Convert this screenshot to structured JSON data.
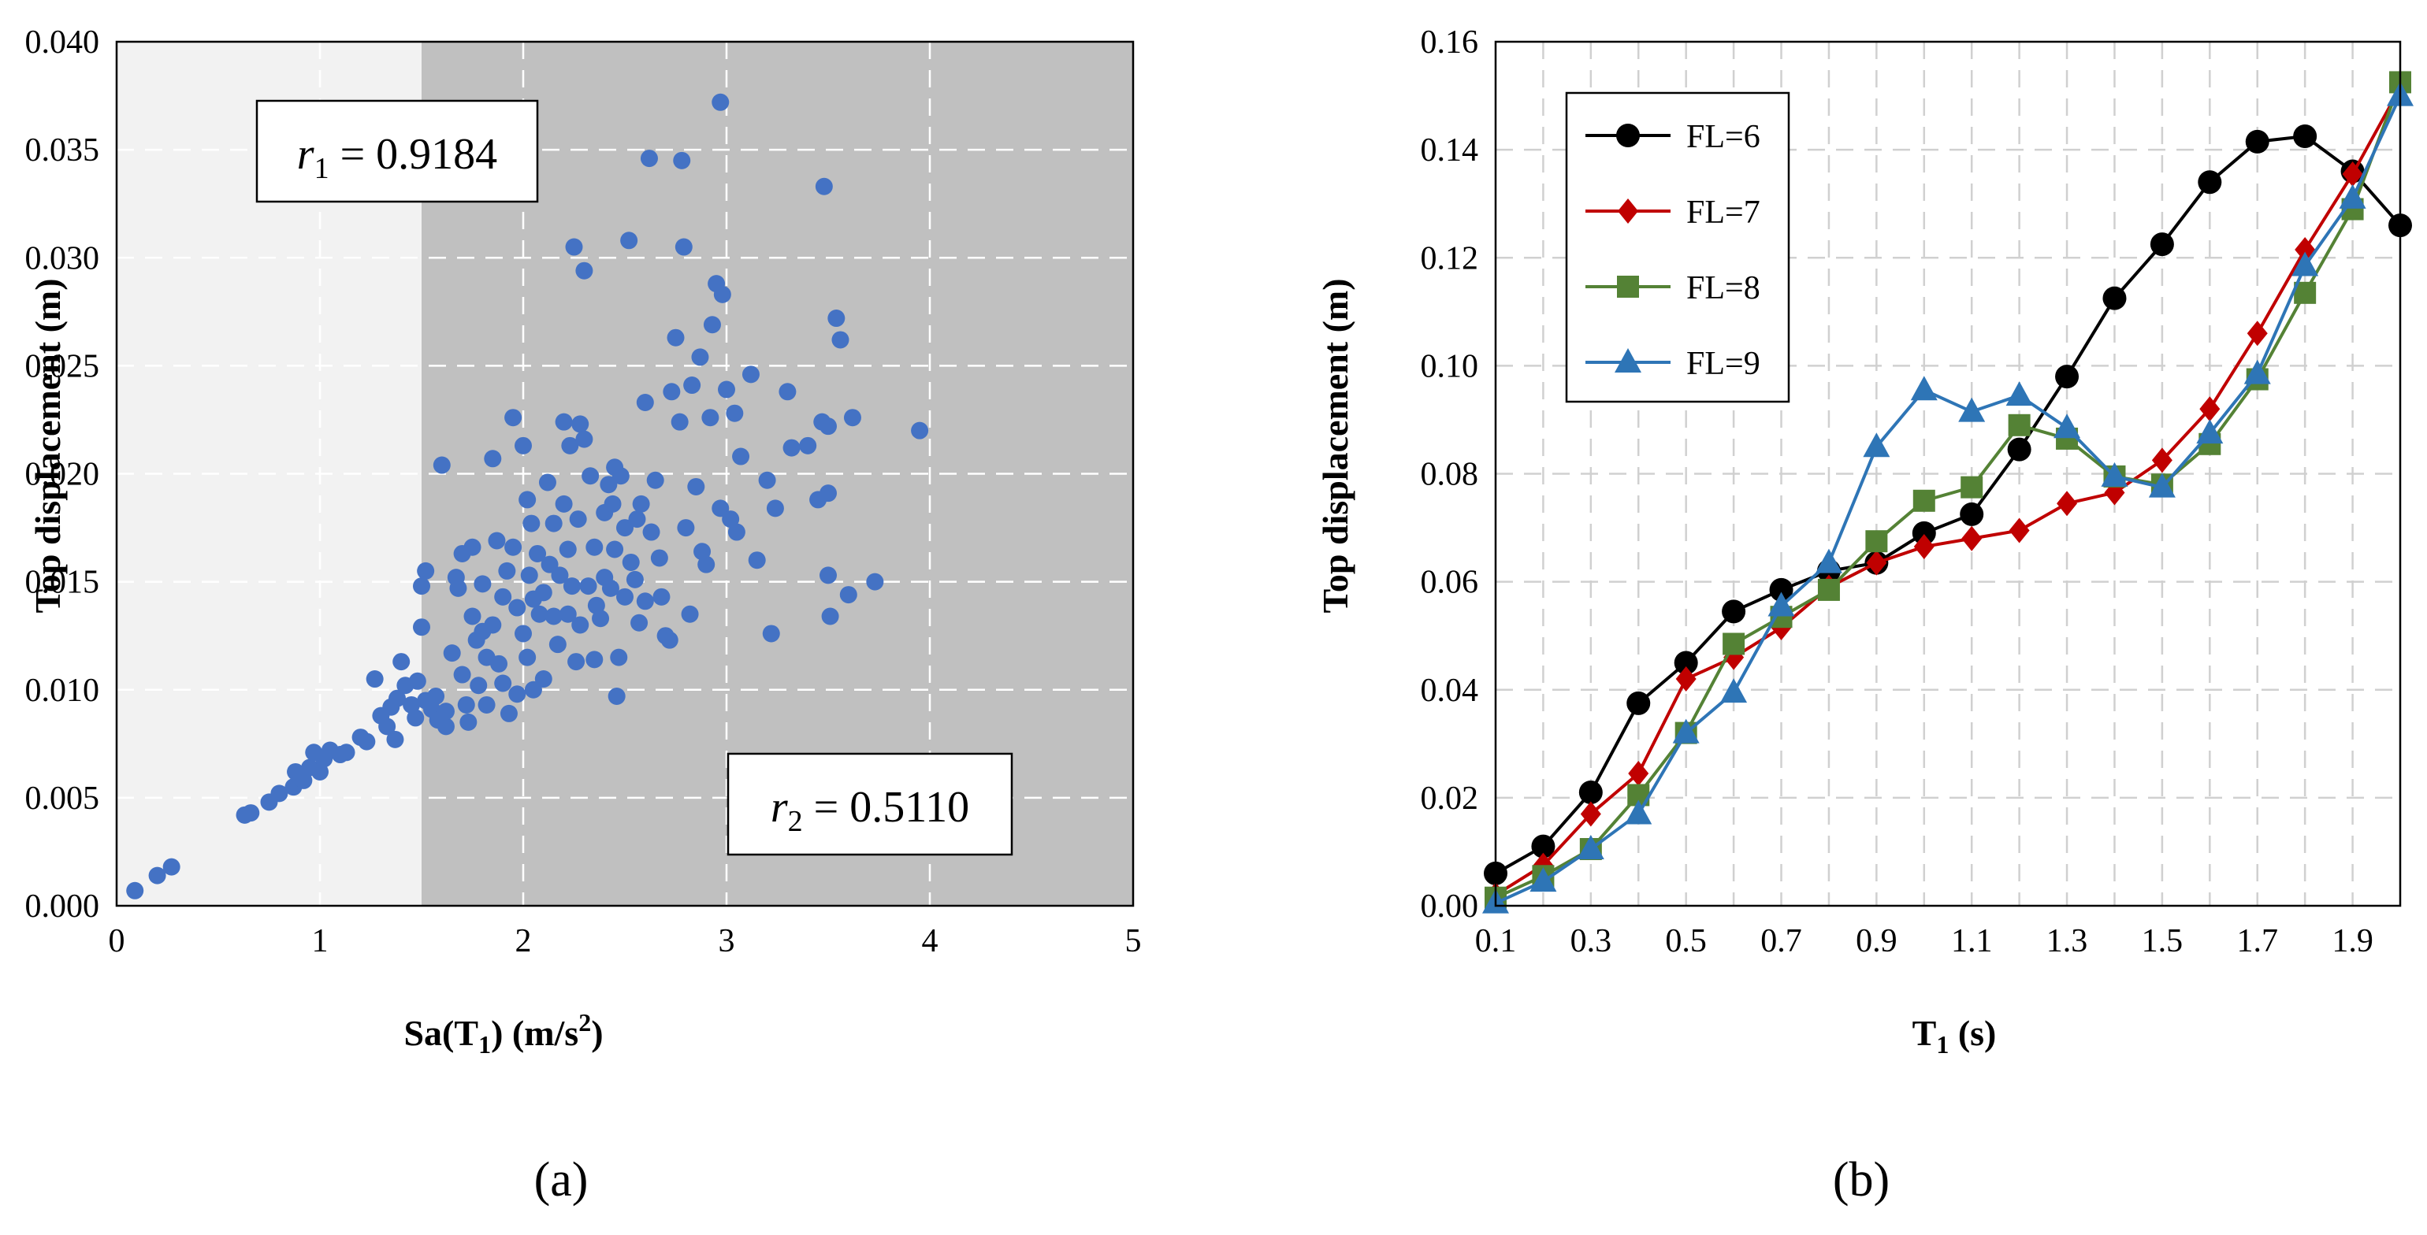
{
  "figure": {
    "panels": [
      "(a)",
      "(b)"
    ]
  },
  "colors": {
    "scatter": "#4472C4",
    "panel_a_low_bg": "#F2F2F2",
    "panel_a_high_bg": "#C0C0C0",
    "FL6": "#000000",
    "FL7": "#C00000",
    "FL8": "#548235",
    "FL9": "#2E75B6"
  },
  "chart_data": [
    {
      "type": "scatter",
      "panel": "(a)",
      "xlabel": "Sa(T1) (m/s2)",
      "xlabel_main": "Sa(T",
      "xlabel_sub": "1",
      "xlabel_mid": ") (m/s",
      "xlabel_sup": "2",
      "xlabel_end": ")",
      "ylabel": "Top displacement (m)",
      "xlim": [
        0,
        5
      ],
      "ylim": [
        0,
        0.04
      ],
      "xticks": [
        "0",
        "1",
        "2",
        "3",
        "4",
        "5"
      ],
      "yticks": [
        "0.000",
        "0.005",
        "0.010",
        "0.015",
        "0.020",
        "0.025",
        "0.030",
        "0.035",
        "0.040"
      ],
      "region_split_x": 1.5,
      "annotations": [
        {
          "text": "r1 = 0.9184",
          "sym": "r",
          "sub": "1",
          "rest": " = 0.9184",
          "position": "top-left"
        },
        {
          "text": "r2 = 0.5110",
          "sym": "r",
          "sub": "2",
          "rest": " = 0.5110",
          "position": "bottom-right"
        }
      ],
      "points": [
        [
          0.09,
          0.0007
        ],
        [
          0.2,
          0.0014
        ],
        [
          0.27,
          0.0018
        ],
        [
          0.63,
          0.0042
        ],
        [
          0.66,
          0.0043
        ],
        [
          0.75,
          0.0048
        ],
        [
          0.8,
          0.0052
        ],
        [
          0.87,
          0.0055
        ],
        [
          0.88,
          0.0062
        ],
        [
          0.92,
          0.0058
        ],
        [
          0.95,
          0.0064
        ],
        [
          0.97,
          0.0071
        ],
        [
          1.0,
          0.0062
        ],
        [
          1.02,
          0.0068
        ],
        [
          1.05,
          0.0072
        ],
        [
          1.1,
          0.007
        ],
        [
          1.13,
          0.0071
        ],
        [
          1.2,
          0.0078
        ],
        [
          1.23,
          0.0076
        ],
        [
          1.27,
          0.0105
        ],
        [
          1.3,
          0.0088
        ],
        [
          1.33,
          0.0083
        ],
        [
          1.35,
          0.0092
        ],
        [
          1.37,
          0.0077
        ],
        [
          1.38,
          0.0096
        ],
        [
          1.4,
          0.0113
        ],
        [
          1.42,
          0.0102
        ],
        [
          1.45,
          0.0093
        ],
        [
          1.47,
          0.0087
        ],
        [
          1.48,
          0.0104
        ],
        [
          1.5,
          0.0148
        ],
        [
          1.5,
          0.0129
        ],
        [
          1.52,
          0.0155
        ],
        [
          1.52,
          0.0095
        ],
        [
          1.55,
          0.0091
        ],
        [
          1.57,
          0.0097
        ],
        [
          1.58,
          0.0086
        ],
        [
          1.6,
          0.0204
        ],
        [
          1.62,
          0.0083
        ],
        [
          1.62,
          0.009
        ],
        [
          1.65,
          0.0117
        ],
        [
          1.67,
          0.0152
        ],
        [
          1.68,
          0.0147
        ],
        [
          1.7,
          0.0163
        ],
        [
          1.7,
          0.0107
        ],
        [
          1.72,
          0.0093
        ],
        [
          1.73,
          0.0085
        ],
        [
          1.75,
          0.0134
        ],
        [
          1.75,
          0.0166
        ],
        [
          1.77,
          0.0123
        ],
        [
          1.78,
          0.0102
        ],
        [
          1.8,
          0.0127
        ],
        [
          1.8,
          0.0149
        ],
        [
          1.82,
          0.0093
        ],
        [
          1.82,
          0.0115
        ],
        [
          1.85,
          0.0207
        ],
        [
          1.85,
          0.013
        ],
        [
          1.87,
          0.0169
        ],
        [
          1.88,
          0.0112
        ],
        [
          1.9,
          0.0103
        ],
        [
          1.9,
          0.0143
        ],
        [
          1.92,
          0.0155
        ],
        [
          1.93,
          0.0089
        ],
        [
          1.95,
          0.0226
        ],
        [
          1.95,
          0.0166
        ],
        [
          1.97,
          0.0138
        ],
        [
          1.97,
          0.0098
        ],
        [
          2.0,
          0.0213
        ],
        [
          2.0,
          0.0126
        ],
        [
          2.02,
          0.0188
        ],
        [
          2.02,
          0.0115
        ],
        [
          2.03,
          0.0153
        ],
        [
          2.04,
          0.0177
        ],
        [
          2.05,
          0.01
        ],
        [
          2.05,
          0.0142
        ],
        [
          2.07,
          0.0163
        ],
        [
          2.08,
          0.0135
        ],
        [
          2.1,
          0.0105
        ],
        [
          2.1,
          0.0145
        ],
        [
          2.12,
          0.0196
        ],
        [
          2.13,
          0.0158
        ],
        [
          2.15,
          0.0134
        ],
        [
          2.15,
          0.0177
        ],
        [
          2.17,
          0.0121
        ],
        [
          2.18,
          0.0153
        ],
        [
          2.2,
          0.0224
        ],
        [
          2.2,
          0.0186
        ],
        [
          2.22,
          0.0135
        ],
        [
          2.22,
          0.0165
        ],
        [
          2.23,
          0.0213
        ],
        [
          2.24,
          0.0148
        ],
        [
          2.25,
          0.0305
        ],
        [
          2.26,
          0.0113
        ],
        [
          2.27,
          0.0179
        ],
        [
          2.28,
          0.0223
        ],
        [
          2.28,
          0.013
        ],
        [
          2.3,
          0.0216
        ],
        [
          2.3,
          0.0294
        ],
        [
          2.32,
          0.0148
        ],
        [
          2.33,
          0.0199
        ],
        [
          2.35,
          0.0166
        ],
        [
          2.35,
          0.0114
        ],
        [
          2.36,
          0.0139
        ],
        [
          2.38,
          0.0133
        ],
        [
          2.4,
          0.0182
        ],
        [
          2.4,
          0.0152
        ],
        [
          2.42,
          0.0195
        ],
        [
          2.43,
          0.0147
        ],
        [
          2.44,
          0.0186
        ],
        [
          2.45,
          0.0203
        ],
        [
          2.45,
          0.0165
        ],
        [
          2.46,
          0.0097
        ],
        [
          2.47,
          0.0115
        ],
        [
          2.48,
          0.0199
        ],
        [
          2.5,
          0.0175
        ],
        [
          2.5,
          0.0143
        ],
        [
          2.52,
          0.0308
        ],
        [
          2.53,
          0.0159
        ],
        [
          2.55,
          0.0151
        ],
        [
          2.56,
          0.0179
        ],
        [
          2.57,
          0.0131
        ],
        [
          2.58,
          0.0186
        ],
        [
          2.6,
          0.0141
        ],
        [
          2.6,
          0.0233
        ],
        [
          2.62,
          0.0346
        ],
        [
          2.63,
          0.0173
        ],
        [
          2.65,
          0.0197
        ],
        [
          2.67,
          0.0161
        ],
        [
          2.68,
          0.0143
        ],
        [
          2.7,
          0.0125
        ],
        [
          2.72,
          0.0123
        ],
        [
          2.73,
          0.0238
        ],
        [
          2.75,
          0.0263
        ],
        [
          2.77,
          0.0224
        ],
        [
          2.78,
          0.0345
        ],
        [
          2.79,
          0.0305
        ],
        [
          2.8,
          0.0175
        ],
        [
          2.82,
          0.0135
        ],
        [
          2.83,
          0.0241
        ],
        [
          2.85,
          0.0194
        ],
        [
          2.87,
          0.0254
        ],
        [
          2.88,
          0.0164
        ],
        [
          2.9,
          0.0158
        ],
        [
          2.92,
          0.0226
        ],
        [
          2.93,
          0.0269
        ],
        [
          2.95,
          0.0288
        ],
        [
          2.97,
          0.0372
        ],
        [
          2.97,
          0.0184
        ],
        [
          2.98,
          0.0283
        ],
        [
          3.0,
          0.0239
        ],
        [
          3.02,
          0.0179
        ],
        [
          3.04,
          0.0228
        ],
        [
          3.05,
          0.0173
        ],
        [
          3.07,
          0.0208
        ],
        [
          3.12,
          0.0246
        ],
        [
          3.15,
          0.016
        ],
        [
          3.2,
          0.0197
        ],
        [
          3.22,
          0.0126
        ],
        [
          3.24,
          0.0184
        ],
        [
          3.3,
          0.0238
        ],
        [
          3.32,
          0.0212
        ],
        [
          3.4,
          0.0213
        ],
        [
          3.45,
          0.0188
        ],
        [
          3.47,
          0.0224
        ],
        [
          3.48,
          0.0333
        ],
        [
          3.5,
          0.0222
        ],
        [
          3.5,
          0.0191
        ],
        [
          3.5,
          0.0153
        ],
        [
          3.51,
          0.0134
        ],
        [
          3.54,
          0.0272
        ],
        [
          3.56,
          0.0262
        ],
        [
          3.6,
          0.0144
        ],
        [
          3.62,
          0.0226
        ],
        [
          3.73,
          0.015
        ],
        [
          3.95,
          0.022
        ]
      ]
    },
    {
      "type": "line",
      "panel": "(b)",
      "xlabel": "T1 (s)",
      "xlabel_main": "T",
      "xlabel_sub": "1",
      "xlabel_end": " (s)",
      "ylabel": "Top displacement (m)",
      "xlim": [
        0.1,
        2.0
      ],
      "ylim": [
        0,
        0.16
      ],
      "xticks": [
        "0.1",
        "0.3",
        "0.5",
        "0.7",
        "0.9",
        "1.1",
        "1.3",
        "1.5",
        "1.7",
        "1.9"
      ],
      "yticks": [
        "0.00",
        "0.02",
        "0.04",
        "0.06",
        "0.08",
        "0.10",
        "0.12",
        "0.14",
        "0.16"
      ],
      "legend_position": "top-left",
      "x": [
        0.1,
        0.2,
        0.3,
        0.4,
        0.5,
        0.6,
        0.7,
        0.8,
        0.9,
        1.0,
        1.1,
        1.2,
        1.3,
        1.4,
        1.5,
        1.6,
        1.7,
        1.8,
        1.9,
        2.0
      ],
      "series": [
        {
          "name": "FL=6",
          "marker": "circle",
          "values": [
            0.006,
            0.011,
            0.021,
            0.0375,
            0.045,
            0.0545,
            0.0585,
            0.062,
            0.0635,
            0.069,
            0.0725,
            0.0845,
            0.098,
            0.1125,
            0.1225,
            0.134,
            0.1415,
            0.1425,
            0.136,
            0.126
          ]
        },
        {
          "name": "FL=7",
          "marker": "diamond",
          "values": [
            0.002,
            0.0075,
            0.017,
            0.0245,
            0.042,
            0.046,
            0.0515,
            0.059,
            0.0635,
            0.0665,
            0.068,
            0.0695,
            0.0745,
            0.0765,
            0.0825,
            0.092,
            0.106,
            0.1215,
            0.1355,
            0.1515
          ]
        },
        {
          "name": "FL=8",
          "marker": "square",
          "values": [
            0.0015,
            0.0055,
            0.0105,
            0.0205,
            0.032,
            0.0485,
            0.0535,
            0.0585,
            0.0675,
            0.075,
            0.0775,
            0.089,
            0.0865,
            0.0795,
            0.078,
            0.0855,
            0.0975,
            0.1135,
            0.129,
            0.1525
          ]
        },
        {
          "name": "FL=9",
          "marker": "triangle",
          "values": [
            0.0005,
            0.0045,
            0.0105,
            0.017,
            0.032,
            0.0395,
            0.0555,
            0.0635,
            0.085,
            0.0955,
            0.0915,
            0.0945,
            0.0885,
            0.0795,
            0.0775,
            0.0875,
            0.0985,
            0.1185,
            0.131,
            0.15
          ]
        }
      ]
    }
  ]
}
